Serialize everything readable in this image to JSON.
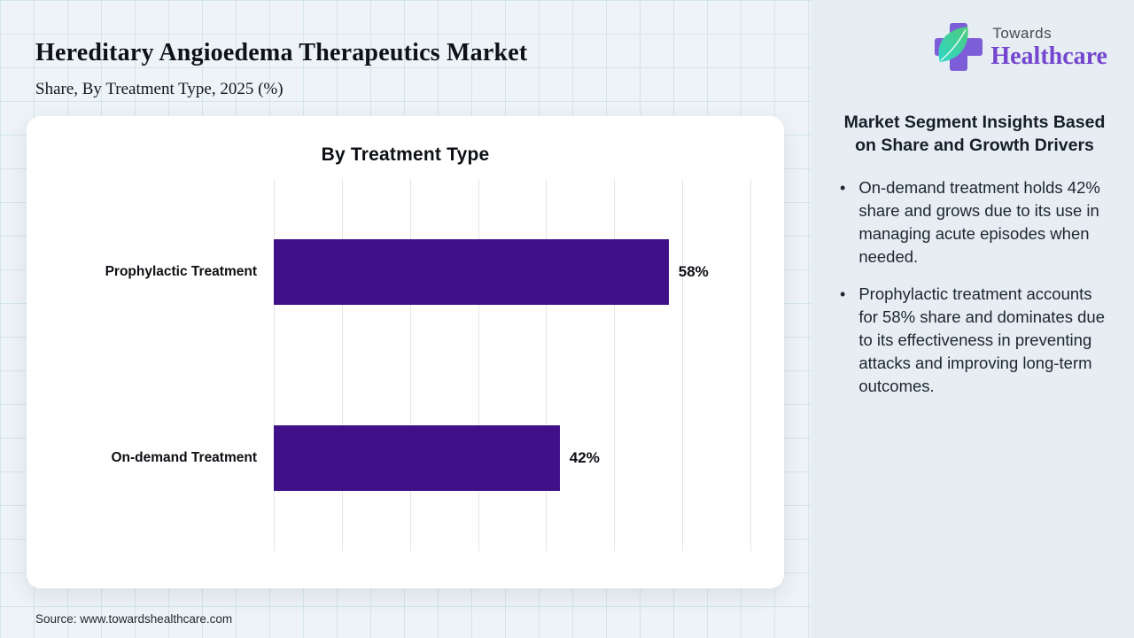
{
  "header": {
    "title": "Hereditary Angioedema Therapeutics Market",
    "subtitle": "Share, By Treatment Type, 2025 (%)"
  },
  "logo": {
    "name": "Towards Healthcare",
    "line1": "Towards",
    "line2": "Healthcare",
    "cross_color": "#7E5ED8",
    "leaf_color_start": "#2ED8C8",
    "leaf_color_end": "#4FC97B",
    "wordmark_color": "#7445CF"
  },
  "chart_data": {
    "type": "bar",
    "orientation": "horizontal",
    "title": "By Treatment Type",
    "categories": [
      "Prophylactic Treatment",
      "On-demand Treatment"
    ],
    "values": [
      58,
      42
    ],
    "value_labels": [
      "58%",
      "42%"
    ],
    "unit": "%",
    "xlim": [
      0,
      70
    ],
    "gridline_interval": 10,
    "grid": true,
    "legend": "none",
    "bar_color": "#3F1088"
  },
  "insights": {
    "heading": "Market Segment Insights Based on Share and Growth Drivers",
    "bullets": [
      "On-demand treatment holds 42% share and grows due to its use in managing acute episodes when needed.",
      "Prophylactic treatment accounts for 58% share and dominates due to its effectiveness in preventing attacks and improving long-term outcomes."
    ]
  },
  "footer": {
    "source": "Source: www.towardshealthcare.com"
  }
}
